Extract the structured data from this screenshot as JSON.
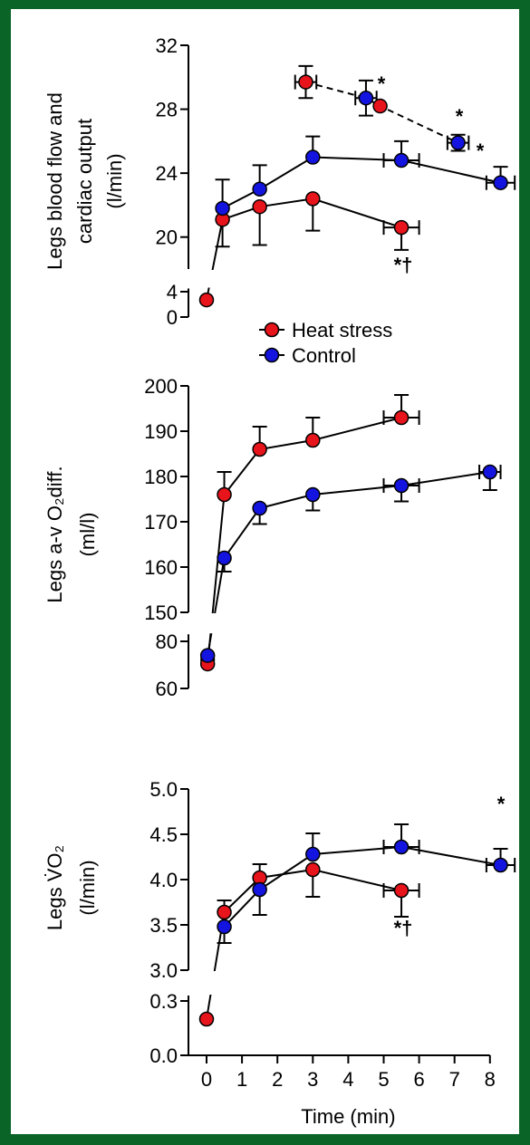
{
  "chart_data": [
    {
      "type": "line",
      "y_label": [
        "Legs blood flow and",
        "cardiac output",
        "(l/min)"
      ],
      "y_segments": [
        {
          "ylim": [
            0,
            4.5
          ],
          "yticks": [
            0,
            4
          ]
        },
        {
          "ylim": [
            18,
            32
          ],
          "yticks": [
            20,
            24,
            28,
            32
          ]
        }
      ],
      "xlim": [
        0,
        8
      ],
      "series": [
        {
          "name": "Heat stress",
          "color": "#e8141c",
          "x": [
            0,
            0.45,
            1.5,
            3,
            5.5
          ],
          "values": [
            2.7,
            21.1,
            21.9,
            22.4,
            20.6
          ],
          "yerr": [
            null,
            1.7,
            2.4,
            2.0,
            1.4
          ],
          "yerr_side": "down",
          "xerr": [
            null,
            null,
            null,
            null,
            0.5
          ]
        },
        {
          "name": "Control",
          "color": "#1414e0",
          "x": [
            0.45,
            1.5,
            3,
            5.5,
            8.3
          ],
          "values": [
            21.8,
            23.0,
            25.0,
            24.8,
            23.4
          ],
          "yerr": [
            1.8,
            1.5,
            1.3,
            1.2,
            1.0
          ],
          "yerr_side": "up",
          "xerr": [
            null,
            null,
            null,
            0.5,
            0.4
          ]
        },
        {
          "dashed": true,
          "x": [
            2.8,
            4.5,
            4.9,
            7.1
          ],
          "values": [
            29.7,
            28.7,
            28.2,
            25.9
          ],
          "point_colors": [
            "#e8141c",
            "#1414e0",
            "#e8141c",
            "#1414e0"
          ],
          "yerr": [
            1.0,
            1.1,
            null,
            0.5
          ],
          "yerr_side": "both",
          "xerr": [
            0.3,
            0.3,
            null,
            0.3
          ]
        }
      ],
      "annotations": [
        "*",
        "*",
        "*",
        "*†"
      ]
    },
    {
      "type": "line",
      "y_label": [
        "Legs a-v O₂diff.",
        "(ml/l)"
      ],
      "y_segments": [
        {
          "ylim": [
            60,
            83
          ],
          "yticks": [
            60,
            80
          ]
        },
        {
          "ylim": [
            150,
            200
          ],
          "yticks": [
            150,
            160,
            170,
            180,
            190,
            200
          ]
        }
      ],
      "xlim": [
        0,
        8
      ],
      "series": [
        {
          "name": "Heat stress",
          "color": "#e8141c",
          "x": [
            0.03,
            0.5,
            1.5,
            3,
            5.5
          ],
          "values": [
            70.4,
            176,
            186,
            188,
            193
          ],
          "yerr": [
            1.5,
            5,
            5,
            5,
            5
          ],
          "yerr_side": "up",
          "xerr": [
            null,
            null,
            null,
            null,
            0.5
          ]
        },
        {
          "name": "Control",
          "color": "#1414e0",
          "x": [
            0.03,
            0.5,
            1.5,
            3,
            5.5,
            8
          ],
          "values": [
            74,
            162,
            173,
            176,
            178,
            181
          ],
          "yerr": [
            1.5,
            3,
            3.5,
            3.5,
            3.5,
            4
          ],
          "yerr_side": "down",
          "xerr": [
            null,
            null,
            null,
            null,
            0.5,
            0.3
          ]
        }
      ],
      "annotations": []
    },
    {
      "type": "line",
      "y_label": [
        "Legs V̇O₂",
        "(l/min)"
      ],
      "y_segments": [
        {
          "ylim": [
            0,
            0.33
          ],
          "yticks": [
            {
              "value": 0,
              "label": "0.0"
            },
            0.3
          ]
        },
        {
          "ylim": [
            3,
            5
          ],
          "yticks": [
            {
              "value": 3,
              "label": "3.0"
            },
            3.5,
            {
              "value": 4,
              "label": "4.0"
            },
            4.5,
            {
              "value": 5,
              "label": "5.0"
            }
          ]
        }
      ],
      "xlim": [
        0,
        8
      ],
      "xticks": [
        0,
        1,
        2,
        3,
        4,
        5,
        6,
        7,
        8
      ],
      "x_label": "Time (min)",
      "series": [
        {
          "name": "Heat stress",
          "color": "#e8141c",
          "x": [
            0,
            0.5,
            1.5,
            3,
            5.5
          ],
          "values": [
            0.2,
            3.64,
            4.02,
            4.11,
            3.88
          ],
          "yerr": [
            null,
            0.13,
            0.15,
            0.3,
            0.29
          ],
          "yerr_side": "split",
          "xerr": [
            null,
            null,
            null,
            null,
            0.5
          ]
        },
        {
          "name": "Control",
          "color": "#1414e0",
          "x": [
            0.5,
            1.5,
            3,
            5.5,
            8.3
          ],
          "values": [
            3.48,
            3.89,
            4.28,
            4.36,
            4.16
          ],
          "yerr": [
            0.18,
            0.28,
            0.23,
            0.25,
            0.18
          ],
          "yerr_side": "split2",
          "xerr": [
            null,
            null,
            null,
            0.5,
            0.4
          ]
        }
      ],
      "annotations": [
        "*",
        "*†"
      ]
    }
  ],
  "legend": [
    "Heat stress",
    "Control"
  ]
}
